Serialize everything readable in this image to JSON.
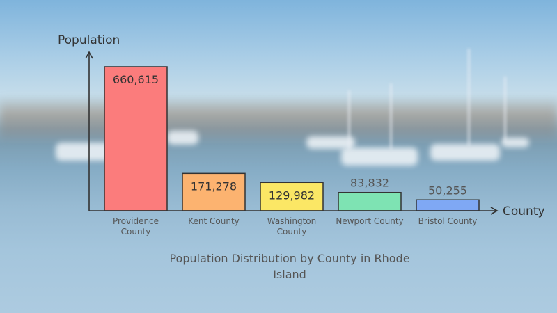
{
  "chart_data": {
    "type": "bar",
    "title": "Population Distribution by County in Rhode Island",
    "xlabel": "County",
    "ylabel": "Population",
    "categories": [
      "Providence County",
      "Kent County",
      "Washington County",
      "Newport County",
      "Bristol County"
    ],
    "values": [
      660615,
      171278,
      129982,
      83832,
      50255
    ],
    "value_labels": [
      "660,615",
      "171,278",
      "129,982",
      "83,832",
      "50,255"
    ],
    "colors": [
      "#fb7c7c",
      "#fcb370",
      "#fbe765",
      "#7ee3b3",
      "#7fa8f4"
    ],
    "grid": false,
    "legend": "none"
  }
}
